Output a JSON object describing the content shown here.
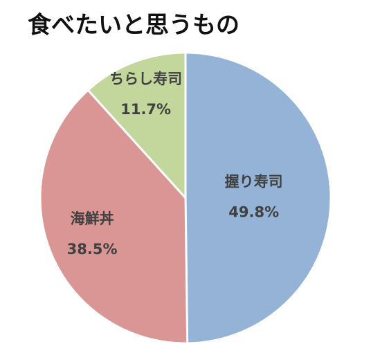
{
  "chart_data": {
    "type": "pie",
    "title": "食べたいと思うもの",
    "categories": [
      "握り寿司",
      "海鮮丼",
      "ちらし寿司"
    ],
    "values": [
      49.8,
      38.5,
      11.7
    ],
    "value_labels": [
      "49.8%",
      "38.5%",
      "11.7%"
    ],
    "colors": [
      "#95b3d7",
      "#d99694",
      "#c3d69b"
    ]
  }
}
